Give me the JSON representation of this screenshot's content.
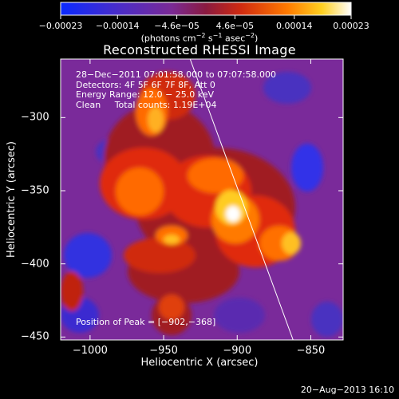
{
  "chart_data": {
    "type": "heatmap",
    "title": "Reconstructed RHESSI Image",
    "xlabel": "Heliocentric X (arcsec)",
    "ylabel": "Heliocentric Y (arcsec)",
    "xlim": [
      -1020,
      -828
    ],
    "ylim": [
      -452,
      -260
    ],
    "x_ticks": [
      -1000,
      -950,
      -900,
      -850
    ],
    "x_tick_labels": [
      "−1000",
      "−950",
      "−900",
      "−850"
    ],
    "y_ticks": [
      -300,
      -350,
      -400,
      -450
    ],
    "y_tick_labels": [
      "−300",
      "−350",
      "−400",
      "−450"
    ],
    "colorbar": {
      "ticks": [
        -0.00023,
        -0.00014,
        -4.6e-05,
        4.6e-05,
        0.00014,
        0.00023
      ],
      "tick_labels": [
        "−0.00023",
        "−0.00014",
        "−4.6e−05",
        "4.6e−05",
        "0.00014",
        "0.00023"
      ],
      "units_prefix": "(photons cm",
      "units_sup1": "−2",
      "units_mid": " s",
      "units_sup2": "−1",
      "units_mid2": " asec",
      "units_sup3": "−2",
      "units_suffix": ")"
    },
    "annotations": {
      "time": "28−Dec−2011 07:01:58.000 to 07:07:58.000",
      "detectors": "Detectors: 4F 5F 6F 7F 8F, Att 0",
      "energy": "Energy Range: 12.0 − 25.0 keV",
      "method": "Clean     Total counts: 1.19E+04",
      "peak": "Position of Peak = [−902,−368]"
    },
    "peak": [
      -902,
      -368
    ],
    "limb_line": [
      [
        -932,
        -260
      ],
      [
        -862,
        -452
      ]
    ]
  },
  "footer": {
    "date": "20−Aug−2013 16:10"
  }
}
